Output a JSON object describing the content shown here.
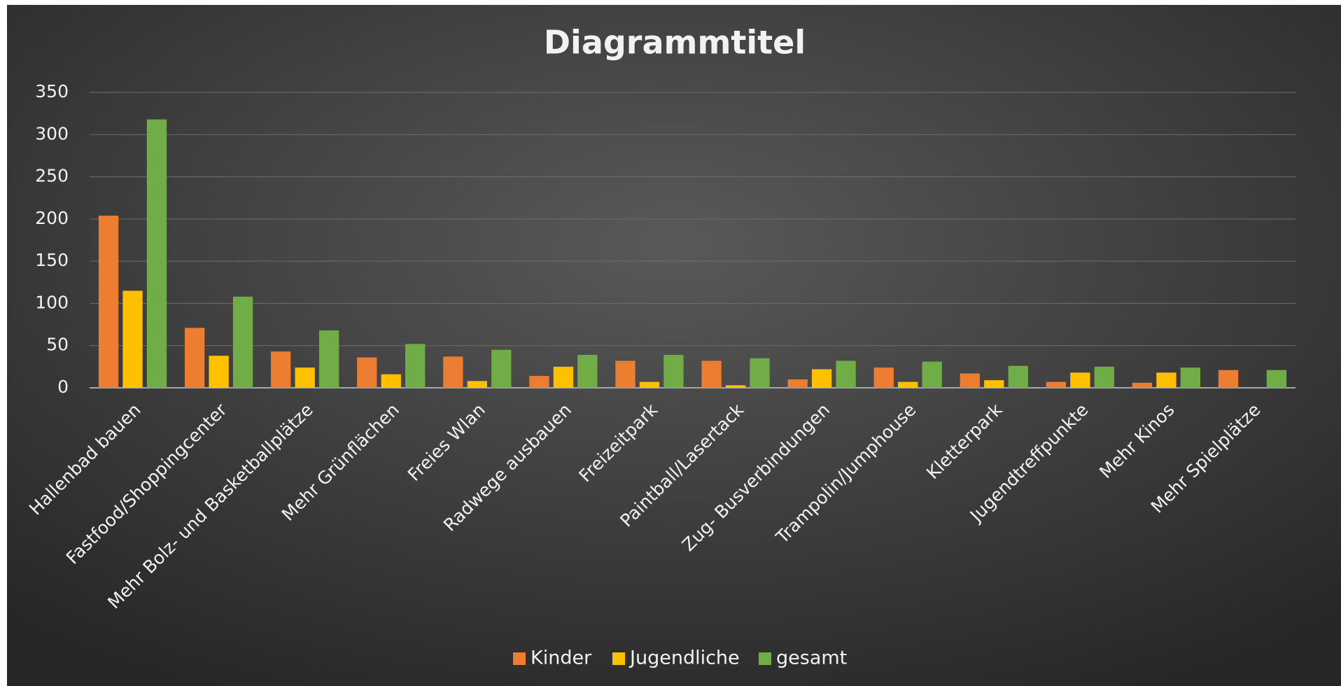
{
  "chart_data": {
    "type": "bar",
    "title": "Diagrammtitel",
    "categories": [
      "Hallenbad bauen",
      "Fastfood/Shoppingcenter",
      "Mehr Bolz- und Basketballplätze",
      "Mehr Grünflächen",
      "Freies Wlan",
      "Radwege ausbauen",
      "Freizeitpark",
      "Paintball/Lasertack",
      "Zug- Busverbindungen",
      "Trampolin/Jumphouse",
      "Kletterpark",
      "Jugendtreffpunkte",
      "Mehr Kinos",
      "Mehr Spielplätze"
    ],
    "series": [
      {
        "name": "Kinder",
        "color": "#ed7d31",
        "values": [
          204,
          71,
          43,
          36,
          37,
          14,
          32,
          32,
          10,
          24,
          17,
          7,
          6,
          21
        ]
      },
      {
        "name": "Jugendliche",
        "color": "#ffc000",
        "values": [
          115,
          38,
          24,
          16,
          8,
          25,
          7,
          3,
          22,
          7,
          9,
          18,
          18,
          0
        ]
      },
      {
        "name": "gesamt",
        "color": "#70ad47",
        "values": [
          318,
          108,
          68,
          52,
          45,
          39,
          39,
          35,
          32,
          31,
          26,
          25,
          24,
          21
        ]
      }
    ],
    "ylim": [
      0,
      350
    ],
    "yticks": [
      0,
      50,
      100,
      150,
      200,
      250,
      300,
      350
    ],
    "grid": true,
    "legend": "bottom"
  }
}
